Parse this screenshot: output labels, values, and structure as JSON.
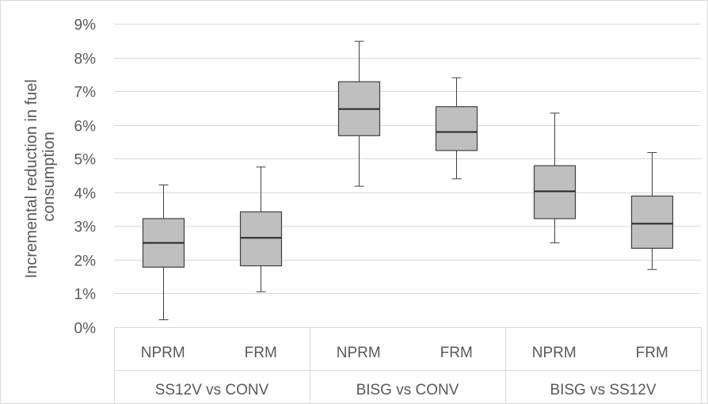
{
  "chart_data": {
    "type": "box",
    "title": "",
    "ylabel_lines": [
      "Incremental reduction in fuel",
      "consumption"
    ],
    "y_ticks": [
      "0%",
      "1%",
      "2%",
      "3%",
      "4%",
      "5%",
      "6%",
      "7%",
      "8%",
      "9%"
    ],
    "ylim": [
      0,
      9
    ],
    "y_unit": "%",
    "grid": true,
    "groups": [
      "SS12V vs CONV",
      "BISG vs CONV",
      "BISG vs SS12V"
    ],
    "categories": [
      "NPRM",
      "FRM",
      "NPRM",
      "FRM",
      "NPRM",
      "FRM"
    ],
    "boxes": [
      {
        "group": "SS12V vs CONV",
        "label": "NPRM",
        "min": 0.22,
        "q1": 1.78,
        "median": 2.5,
        "q3": 3.22,
        "max": 4.22
      },
      {
        "group": "SS12V vs CONV",
        "label": "FRM",
        "min": 1.05,
        "q1": 1.82,
        "median": 2.65,
        "q3": 3.42,
        "max": 4.75
      },
      {
        "group": "BISG vs CONV",
        "label": "NPRM",
        "min": 4.18,
        "q1": 5.68,
        "median": 6.47,
        "q3": 7.28,
        "max": 8.48
      },
      {
        "group": "BISG vs CONV",
        "label": "FRM",
        "min": 4.4,
        "q1": 5.24,
        "median": 5.79,
        "q3": 6.54,
        "max": 7.4
      },
      {
        "group": "BISG vs SS12V",
        "label": "NPRM",
        "min": 2.5,
        "q1": 3.22,
        "median": 4.03,
        "q3": 4.79,
        "max": 6.35
      },
      {
        "group": "BISG vs SS12V",
        "label": "FRM",
        "min": 1.71,
        "q1": 2.34,
        "median": 3.07,
        "q3": 3.89,
        "max": 5.18
      }
    ],
    "colors": {
      "box_fill": "#bfbfbf",
      "box_stroke": "#404040",
      "grid": "#d9d9d9",
      "text": "#595959"
    }
  }
}
